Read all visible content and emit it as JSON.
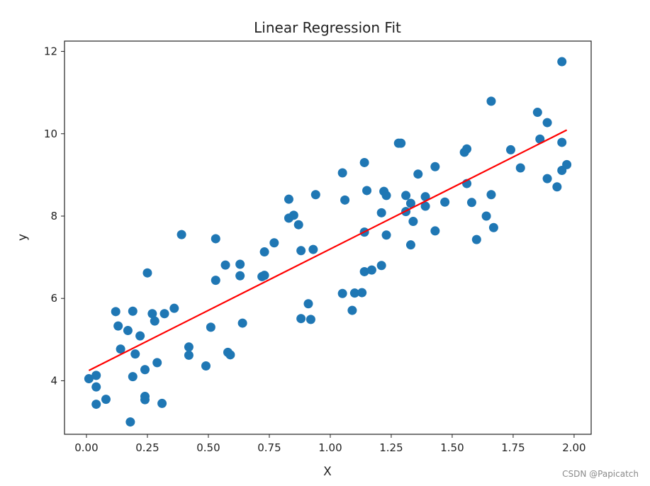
{
  "watermark": "CSDN @Papicatch",
  "chart_data": {
    "type": "scatter",
    "title": "Linear Regression Fit",
    "xlabel": "X",
    "ylabel": "y",
    "xlim": [
      -0.09,
      2.07
    ],
    "ylim": [
      2.7,
      12.25
    ],
    "xticks": [
      0.0,
      0.25,
      0.5,
      0.75,
      1.0,
      1.25,
      1.5,
      1.75,
      2.0
    ],
    "xtick_labels": [
      "0.00",
      "0.25",
      "0.50",
      "0.75",
      "1.00",
      "1.25",
      "1.50",
      "1.75",
      "2.00"
    ],
    "yticks": [
      4,
      6,
      8,
      10,
      12
    ],
    "ytick_labels": [
      "4",
      "6",
      "8",
      "10",
      "12"
    ],
    "grid": false,
    "colors": {
      "points": "#1f77b4",
      "line": "#ff0000",
      "axes": "#222222"
    },
    "series": [
      {
        "type": "scatter",
        "points": [
          [
            0.01,
            4.05
          ],
          [
            0.04,
            4.13
          ],
          [
            0.04,
            3.85
          ],
          [
            0.04,
            3.43
          ],
          [
            0.08,
            3.55
          ],
          [
            0.12,
            5.68
          ],
          [
            0.13,
            5.33
          ],
          [
            0.14,
            4.77
          ],
          [
            0.17,
            5.22
          ],
          [
            0.18,
            3.0
          ],
          [
            0.19,
            5.69
          ],
          [
            0.19,
            4.1
          ],
          [
            0.2,
            4.65
          ],
          [
            0.22,
            5.09
          ],
          [
            0.24,
            3.62
          ],
          [
            0.24,
            3.54
          ],
          [
            0.24,
            4.27
          ],
          [
            0.25,
            6.62
          ],
          [
            0.27,
            5.63
          ],
          [
            0.28,
            5.45
          ],
          [
            0.29,
            4.44
          ],
          [
            0.31,
            3.45
          ],
          [
            0.32,
            5.63
          ],
          [
            0.36,
            5.76
          ],
          [
            0.39,
            7.55
          ],
          [
            0.42,
            4.82
          ],
          [
            0.42,
            4.62
          ],
          [
            0.49,
            4.36
          ],
          [
            0.51,
            5.3
          ],
          [
            0.53,
            6.44
          ],
          [
            0.53,
            7.45
          ],
          [
            0.57,
            6.81
          ],
          [
            0.58,
            4.69
          ],
          [
            0.59,
            4.63
          ],
          [
            0.63,
            6.55
          ],
          [
            0.63,
            6.83
          ],
          [
            0.64,
            5.4
          ],
          [
            0.72,
            6.53
          ],
          [
            0.73,
            6.56
          ],
          [
            0.73,
            7.13
          ],
          [
            0.77,
            7.35
          ],
          [
            0.83,
            8.41
          ],
          [
            0.83,
            7.95
          ],
          [
            0.85,
            8.02
          ],
          [
            0.87,
            7.79
          ],
          [
            0.88,
            5.51
          ],
          [
            0.88,
            7.16
          ],
          [
            0.91,
            5.87
          ],
          [
            0.92,
            5.49
          ],
          [
            0.93,
            7.19
          ],
          [
            0.94,
            8.52
          ],
          [
            1.05,
            9.05
          ],
          [
            1.05,
            6.12
          ],
          [
            1.06,
            8.39
          ],
          [
            1.09,
            5.71
          ],
          [
            1.1,
            6.13
          ],
          [
            1.13,
            6.14
          ],
          [
            1.14,
            9.3
          ],
          [
            1.14,
            7.61
          ],
          [
            1.14,
            6.65
          ],
          [
            1.15,
            8.62
          ],
          [
            1.17,
            6.69
          ],
          [
            1.21,
            8.08
          ],
          [
            1.21,
            6.8
          ],
          [
            1.22,
            8.6
          ],
          [
            1.23,
            8.5
          ],
          [
            1.23,
            7.54
          ],
          [
            1.28,
            9.77
          ],
          [
            1.29,
            9.77
          ],
          [
            1.31,
            8.5
          ],
          [
            1.31,
            8.11
          ],
          [
            1.33,
            8.31
          ],
          [
            1.33,
            7.3
          ],
          [
            1.34,
            7.87
          ],
          [
            1.36,
            9.02
          ],
          [
            1.39,
            8.24
          ],
          [
            1.39,
            8.47
          ],
          [
            1.43,
            9.2
          ],
          [
            1.43,
            7.64
          ],
          [
            1.47,
            8.34
          ],
          [
            1.55,
            9.55
          ],
          [
            1.56,
            9.63
          ],
          [
            1.56,
            8.79
          ],
          [
            1.58,
            8.33
          ],
          [
            1.6,
            7.43
          ],
          [
            1.64,
            8.0
          ],
          [
            1.66,
            8.52
          ],
          [
            1.66,
            10.79
          ],
          [
            1.67,
            7.72
          ],
          [
            1.74,
            9.61
          ],
          [
            1.78,
            9.17
          ],
          [
            1.85,
            10.52
          ],
          [
            1.86,
            9.87
          ],
          [
            1.89,
            10.27
          ],
          [
            1.89,
            8.91
          ],
          [
            1.93,
            8.71
          ],
          [
            1.95,
            11.75
          ],
          [
            1.95,
            9.79
          ],
          [
            1.95,
            9.11
          ],
          [
            1.97,
            9.25
          ]
        ]
      },
      {
        "type": "line",
        "x": [
          0.01,
          1.97
        ],
        "y": [
          4.25,
          10.09
        ]
      }
    ]
  }
}
